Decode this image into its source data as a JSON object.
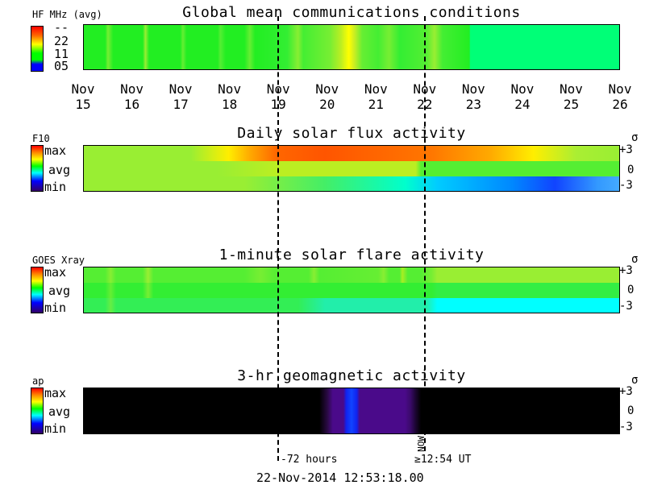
{
  "header": {
    "hf_label": "HF MHz (avg)",
    "title": "Global mean communications conditions",
    "scale": [
      "--",
      "22",
      "11",
      "05"
    ]
  },
  "x_axis": {
    "ticks": [
      {
        "month": "Nov",
        "day": "15"
      },
      {
        "month": "Nov",
        "day": "16"
      },
      {
        "month": "Nov",
        "day": "17"
      },
      {
        "month": "Nov",
        "day": "18"
      },
      {
        "month": "Nov",
        "day": "19"
      },
      {
        "month": "Nov",
        "day": "20"
      },
      {
        "month": "Nov",
        "day": "21"
      },
      {
        "month": "Nov",
        "day": "22"
      },
      {
        "month": "Nov",
        "day": "23"
      },
      {
        "month": "Nov",
        "day": "24"
      },
      {
        "month": "Nov",
        "day": "25"
      },
      {
        "month": "Nov",
        "day": "26"
      }
    ]
  },
  "panels": {
    "flux": {
      "title": "Daily solar flux activity",
      "side_label": "F10"
    },
    "flare": {
      "title": "1-minute solar flare activity",
      "side_label": "GOES Xray"
    },
    "geo": {
      "title": "3-hr geomagnetic activity",
      "side_label": "ap"
    }
  },
  "scale_labels": {
    "max": "max",
    "avg": "avg",
    "min": "min"
  },
  "sigma_labels": {
    "symbol": "σ",
    "plus": "+3",
    "zero": "0",
    "minus": "-3"
  },
  "markers": {
    "minus72": "-72 hours",
    "now": "NOW",
    "now_time": "≥12:54 UT"
  },
  "footer": {
    "timestamp": "22-Nov-2014 12:53:18.00"
  },
  "colors": {
    "green": "#22ee22",
    "teal": "#00ff77",
    "cyan": "#00ffff",
    "black": "#000000",
    "purple": "#4a0a8a"
  },
  "chart_data": {
    "type": "heatmap",
    "x_range": [
      "Nov 15",
      "Nov 26"
    ],
    "markers_at": {
      "minus72": "Nov 19",
      "now": "Nov 22"
    },
    "panels": [
      {
        "name": "HF MHz (avg)",
        "note": "mostly ~11 MHz (green); brief peaks toward 22 near Nov 20.5; forecast region after Nov 23"
      },
      {
        "name": "F10",
        "rows": 3,
        "note": "top row above average peaking Nov 20-22; bottom row falling below average after Nov 22"
      },
      {
        "name": "GOES Xray",
        "rows": 3,
        "note": "near average with variability"
      },
      {
        "name": "ap",
        "note": "low (black) except elevated activity Nov 20-21"
      }
    ]
  }
}
